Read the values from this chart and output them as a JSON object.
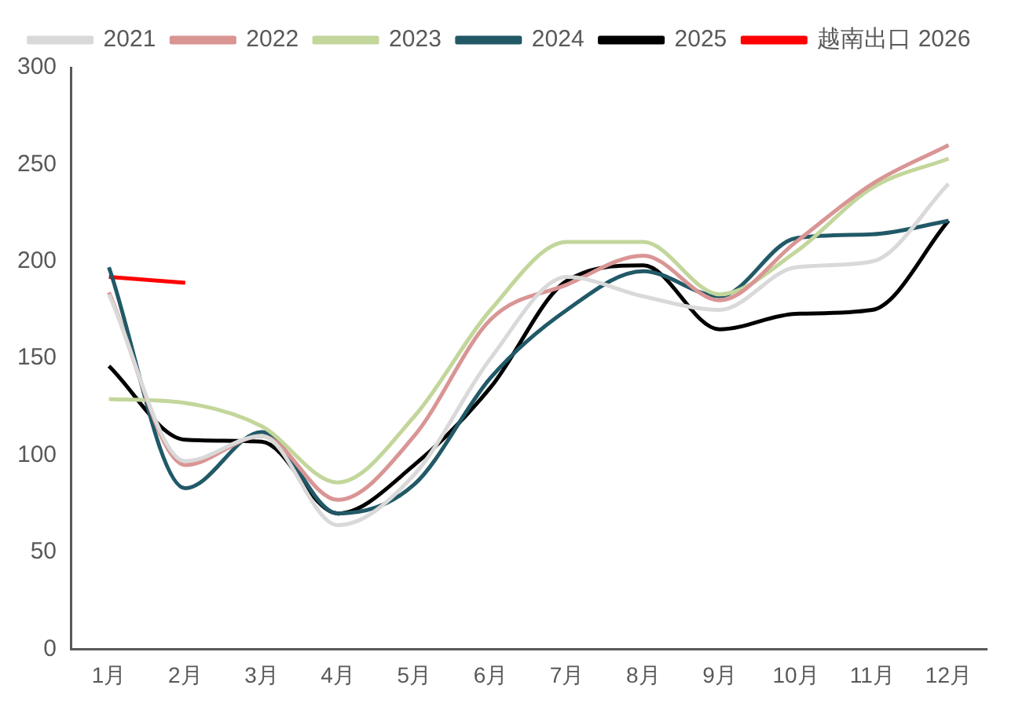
{
  "chart_data": {
    "type": "line",
    "categories": [
      "1月",
      "2月",
      "3月",
      "4月",
      "5月",
      "6月",
      "7月",
      "8月",
      "9月",
      "10月",
      "11月",
      "12月"
    ],
    "series": [
      {
        "name": "2021",
        "color": "#d9d9d9",
        "values": [
          183,
          97,
          110,
          64,
          90,
          150,
          192,
          182,
          175,
          197,
          200,
          240
        ]
      },
      {
        "name": "2022",
        "color": "#d99594",
        "values": [
          184,
          95,
          110,
          77,
          110,
          170,
          188,
          203,
          180,
          210,
          240,
          260
        ]
      },
      {
        "name": "2023",
        "color": "#c3d69b",
        "values": [
          129,
          127,
          115,
          86,
          120,
          175,
          210,
          210,
          183,
          205,
          238,
          253
        ]
      },
      {
        "name": "2024",
        "color": "#215967",
        "values": [
          197,
          83,
          112,
          70,
          85,
          140,
          175,
          195,
          182,
          212,
          214,
          221
        ]
      },
      {
        "name": "2025",
        "color": "#000000",
        "values": [
          146,
          108,
          107,
          70,
          95,
          135,
          190,
          198,
          165,
          173,
          175,
          221
        ]
      },
      {
        "name": "越南出口 2026",
        "color": "#ff0000",
        "values": [
          192,
          189,
          null,
          null,
          null,
          null,
          null,
          null,
          null,
          null,
          null,
          null
        ]
      }
    ],
    "ylim": [
      0,
      300
    ],
    "yticks": [
      0,
      50,
      100,
      150,
      200,
      250,
      300
    ],
    "grid": false,
    "legend": "top",
    "marker": "none",
    "line_style": "solid"
  }
}
